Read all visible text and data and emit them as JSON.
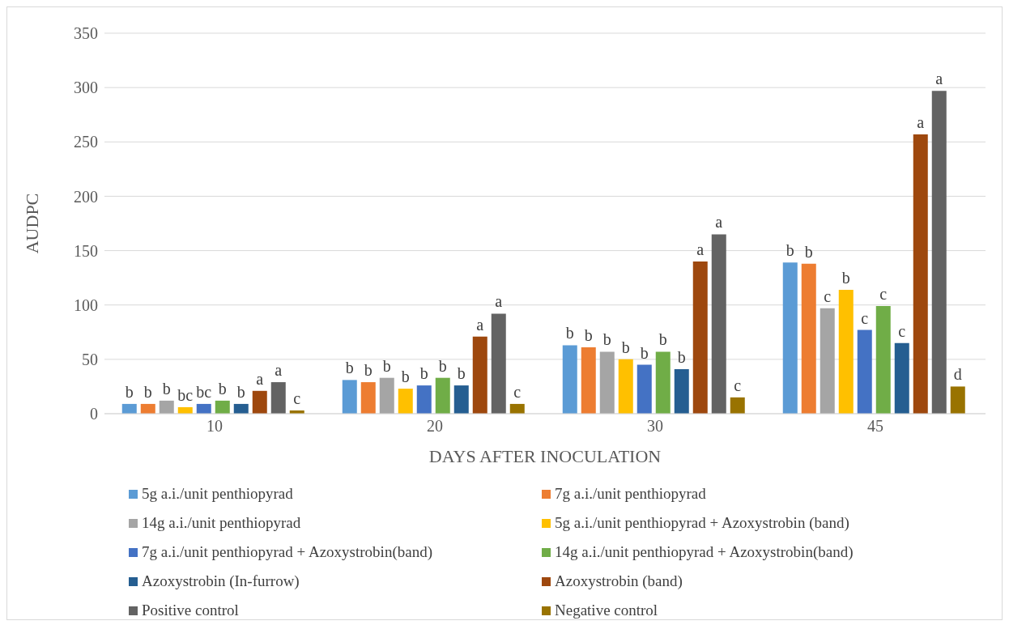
{
  "chart_data": {
    "type": "bar",
    "xlabel": "DAYS AFTER INOCULATION",
    "ylabel": "AUDPC",
    "categories": [
      "10",
      "20",
      "30",
      "45"
    ],
    "series": [
      {
        "name": "5g a.i./unit penthiopyrad",
        "color": "#5b9bd5",
        "values": [
          9,
          31,
          63,
          139
        ],
        "value_labels": [
          "b",
          "b",
          "b",
          "b"
        ]
      },
      {
        "name": "7g a.i./unit penthiopyrad",
        "color": "#ed7d31",
        "values": [
          9,
          29,
          61,
          138
        ],
        "value_labels": [
          "b",
          "b",
          "b",
          "b"
        ]
      },
      {
        "name": "14g a.i./unit penthiopyrad",
        "color": "#a5a5a5",
        "values": [
          12,
          33,
          57,
          97
        ],
        "value_labels": [
          "b",
          "b",
          "b",
          "c"
        ]
      },
      {
        "name": "5g a.i./unit penthiopyrad + Azoxystrobin (band)",
        "color": "#ffc000",
        "values": [
          6,
          23,
          50,
          114
        ],
        "value_labels": [
          "bc",
          "b",
          "b",
          "b"
        ]
      },
      {
        "name": "7g a.i./unit penthiopyrad + Azoxystrobin(band)",
        "color": "#4472c4",
        "values": [
          9,
          26,
          45,
          77
        ],
        "value_labels": [
          "bc",
          "b",
          "b",
          "c"
        ]
      },
      {
        "name": "14g a.i./unit penthiopyrad + Azoxystrobin(band)",
        "color": "#70ad47",
        "values": [
          12,
          33,
          57,
          99
        ],
        "value_labels": [
          "b",
          "b",
          "b",
          "c"
        ]
      },
      {
        "name": "Azoxystrobin (In-furrow)",
        "color": "#255e91",
        "values": [
          9,
          26,
          41,
          65
        ],
        "value_labels": [
          "b",
          "b",
          "b",
          "c"
        ]
      },
      {
        "name": "Azoxystrobin (band)",
        "color": "#9e480e",
        "values": [
          21,
          71,
          140,
          257
        ],
        "value_labels": [
          "a",
          "a",
          "a",
          "a"
        ]
      },
      {
        "name": "Positive control",
        "color": "#636363",
        "values": [
          29,
          92,
          165,
          297
        ],
        "value_labels": [
          "a",
          "a",
          "a",
          "a"
        ]
      },
      {
        "name": "Negative control",
        "color": "#997300",
        "values": [
          3,
          9,
          15,
          25
        ],
        "value_labels": [
          "c",
          "c",
          "c",
          "d"
        ]
      }
    ],
    "ylim": [
      0,
      350
    ],
    "yticks": [
      0,
      50,
      100,
      150,
      200,
      250,
      300,
      350
    ],
    "grid": "y",
    "legend": "bottom"
  }
}
